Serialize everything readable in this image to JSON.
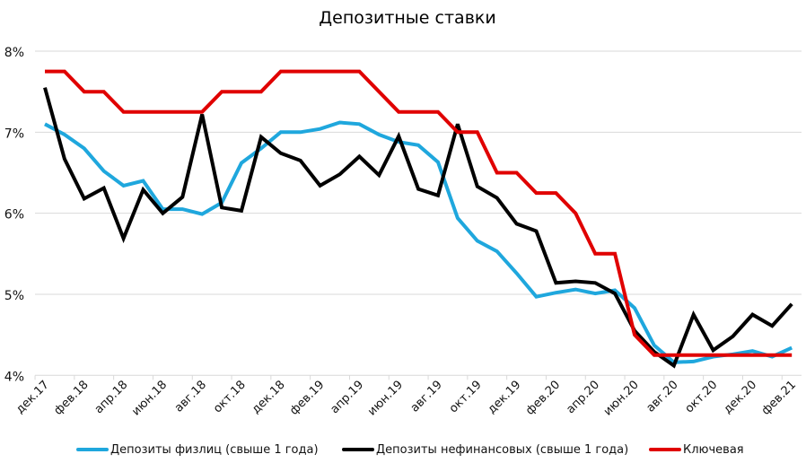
{
  "chart_data": {
    "type": "line",
    "title": "Депозитные ставки",
    "xlabel": "",
    "ylabel": "",
    "ylim": [
      4,
      8
    ],
    "yticks": [
      "4%",
      "5%",
      "6%",
      "7%",
      "8%"
    ],
    "grid": true,
    "legend_position": "bottom",
    "x": [
      "дек.17",
      "янв.18",
      "фев.18",
      "мар.18",
      "апр.18",
      "май.18",
      "июн.18",
      "июл.18",
      "авг.18",
      "сен.18",
      "окт.18",
      "ноя.18",
      "дек.18",
      "янв.19",
      "фев.19",
      "мар.19",
      "апр.19",
      "май.19",
      "июн.19",
      "июл.19",
      "авг.19",
      "сен.19",
      "окт.19",
      "ноя.19",
      "дек.19",
      "янв.20",
      "фев.20",
      "мар.20",
      "апр.20",
      "май.20",
      "июн.20",
      "июл.20",
      "авг.20",
      "сен.20",
      "окт.20",
      "ноя.20",
      "дек.20",
      "янв.21",
      "фев.21"
    ],
    "x_tick_labels": [
      "дек.17",
      "фев.18",
      "апр.18",
      "июн.18",
      "авг.18",
      "окт.18",
      "дек.18",
      "фев.19",
      "апр.19",
      "июн.19",
      "авг.19",
      "окт.19",
      "дек.19",
      "фев.20",
      "апр.20",
      "июн.20",
      "авг.20",
      "окт.20",
      "дек.20",
      "фев.21"
    ],
    "series": [
      {
        "name": "Депозиты физлиц (свыше 1 года)",
        "color": "#1fa7dd",
        "values": [
          7.1,
          6.97,
          6.8,
          6.52,
          6.34,
          6.4,
          6.05,
          6.05,
          5.99,
          6.13,
          6.62,
          6.8,
          7.0,
          7.0,
          7.04,
          7.12,
          7.1,
          6.97,
          6.88,
          6.84,
          6.63,
          5.94,
          5.66,
          5.53,
          5.26,
          4.97,
          5.02,
          5.06,
          5.01,
          5.05,
          4.83,
          4.37,
          4.16,
          4.17,
          4.23,
          4.26,
          4.3,
          4.23,
          4.34
        ]
      },
      {
        "name": "Депозиты нефинансовых (свыше 1 года)",
        "color": "#000000",
        "values": [
          7.55,
          6.67,
          6.18,
          6.31,
          5.69,
          6.29,
          6.0,
          6.2,
          7.22,
          6.07,
          6.03,
          6.94,
          6.74,
          6.65,
          6.34,
          6.48,
          6.7,
          6.47,
          6.95,
          6.3,
          6.22,
          7.1,
          6.33,
          6.19,
          5.87,
          5.78,
          5.14,
          5.16,
          5.14,
          5.01,
          4.55,
          4.29,
          4.12,
          4.75,
          4.31,
          4.48,
          4.75,
          4.61,
          4.88
        ]
      },
      {
        "name": "Ключевая",
        "color": "#e00000",
        "values": [
          7.75,
          7.75,
          7.5,
          7.5,
          7.25,
          7.25,
          7.25,
          7.25,
          7.25,
          7.5,
          7.5,
          7.5,
          7.75,
          7.75,
          7.75,
          7.75,
          7.75,
          7.5,
          7.25,
          7.25,
          7.25,
          7.0,
          7.0,
          6.5,
          6.5,
          6.25,
          6.25,
          6.0,
          5.5,
          5.5,
          4.5,
          4.25,
          4.25,
          4.25,
          4.25,
          4.25,
          4.25,
          4.25,
          4.25
        ]
      }
    ]
  },
  "legend": {
    "items": [
      {
        "label": "Депозиты физлиц (свыше 1 года)",
        "color": "#1fa7dd"
      },
      {
        "label": "Депозиты нефинансовых (свыше 1 года)",
        "color": "#000000"
      },
      {
        "label": "Ключевая",
        "color": "#e00000"
      }
    ]
  }
}
